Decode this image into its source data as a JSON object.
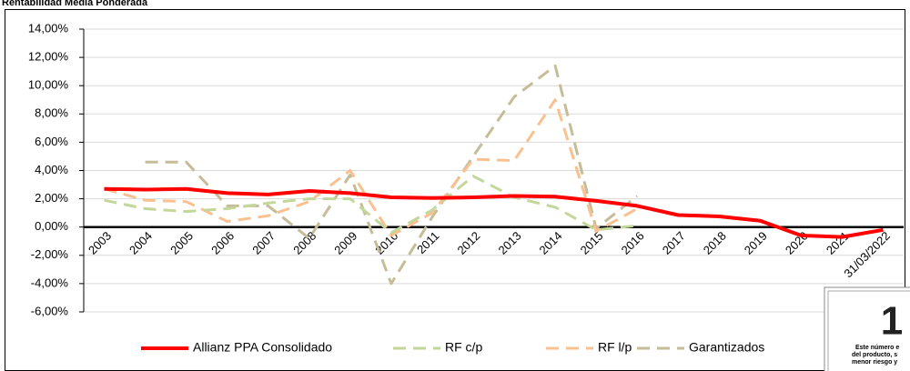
{
  "chart_data": {
    "type": "line",
    "title": "Rentabilidad Media Ponderada",
    "categories": [
      "2003",
      "2004",
      "2005",
      "2006",
      "2007",
      "2008",
      "2009",
      "2010",
      "2011",
      "2012",
      "2013",
      "2014",
      "2015",
      "2016",
      "2017",
      "2018",
      "2019",
      "2020",
      "2021",
      "31/03/2022"
    ],
    "series": [
      {
        "name": "Allianz PPA Consolidado",
        "color": "#ff0000",
        "values": [
          2.7,
          2.65,
          2.7,
          2.4,
          2.3,
          2.55,
          2.4,
          2.1,
          2.05,
          2.1,
          2.2,
          2.15,
          1.85,
          1.5,
          0.85,
          0.75,
          0.45,
          -0.6,
          -0.7,
          -0.2
        ]
      },
      {
        "name": "RF c/p",
        "color": "#c4d79b",
        "values": [
          1.9,
          1.3,
          1.1,
          1.3,
          1.7,
          2.0,
          2.0,
          -0.4,
          1.2,
          3.6,
          2.1,
          1.4,
          -0.2,
          0.1,
          null,
          null,
          null,
          null,
          null,
          null
        ]
      },
      {
        "name": "RF l/p",
        "color": "#fac090",
        "values": [
          2.7,
          1.9,
          1.8,
          0.4,
          0.8,
          1.8,
          4.0,
          -0.6,
          1.0,
          4.8,
          4.7,
          9.0,
          -0.3,
          1.3,
          null,
          null,
          null,
          null,
          null,
          null
        ]
      },
      {
        "name": "Garantizados",
        "color": "#c4bd97",
        "values": [
          null,
          4.6,
          4.6,
          1.5,
          1.5,
          -0.8,
          3.7,
          -4.0,
          0.7,
          5.0,
          9.2,
          11.4,
          -0.1,
          2.2,
          null,
          null,
          null,
          null,
          null,
          null
        ]
      }
    ],
    "ylim": [
      -6,
      14
    ],
    "yticks": [
      {
        "value": -6,
        "label": "-6,00%"
      },
      {
        "value": -4,
        "label": "-4,00%"
      },
      {
        "value": -2,
        "label": "-2,00%"
      },
      {
        "value": 0,
        "label": "0,00%"
      },
      {
        "value": 2,
        "label": "2,00%"
      },
      {
        "value": 4,
        "label": "4,00%"
      },
      {
        "value": 6,
        "label": "6,00%"
      },
      {
        "value": 8,
        "label": "8,00%"
      },
      {
        "value": 10,
        "label": "10,00%"
      },
      {
        "value": 12,
        "label": "12,00%"
      },
      {
        "value": 14,
        "label": "14,00%"
      }
    ],
    "grid": true
  },
  "badge": {
    "number": "1",
    "lines": [
      "Este número e",
      "del producto, s",
      "menor riesgo y"
    ]
  }
}
